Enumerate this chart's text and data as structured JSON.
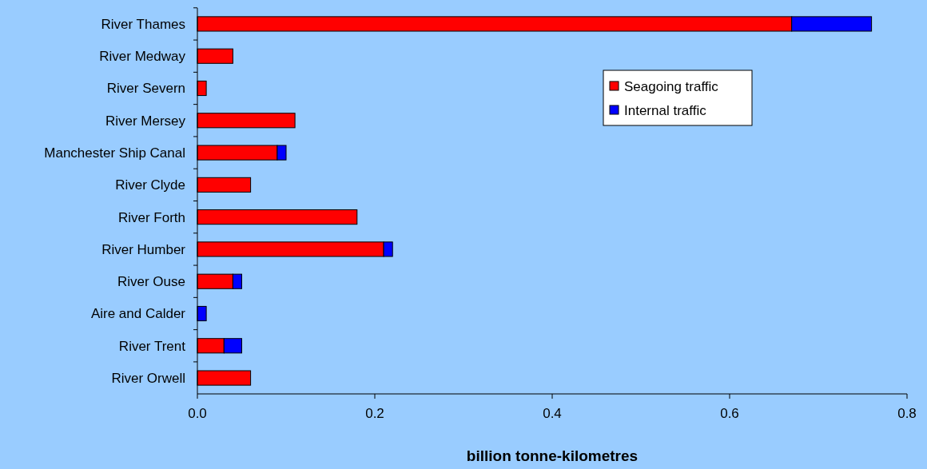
{
  "chart_data": {
    "type": "bar",
    "orientation": "horizontal",
    "stacked": true,
    "xlabel": "billion tonne-kilometres",
    "categories": [
      "River Thames",
      "River Medway",
      "River Severn",
      "River Mersey",
      "Manchester Ship Canal",
      "River Clyde",
      "River Forth",
      "River Humber",
      "River Ouse",
      "Aire and Calder",
      "River Trent",
      "River Orwell"
    ],
    "series": [
      {
        "name": "Seagoing traffic",
        "color": "#ff0000",
        "values": [
          0.67,
          0.04,
          0.01,
          0.11,
          0.09,
          0.06,
          0.18,
          0.21,
          0.04,
          0,
          0.03,
          0.06
        ]
      },
      {
        "name": "Internal traffic",
        "color": "#0000ff",
        "values": [
          0.09,
          0,
          0,
          0,
          0.01,
          0,
          0,
          0.01,
          0.01,
          0.01,
          0.02,
          0
        ]
      }
    ],
    "xlim": [
      0,
      0.8
    ],
    "xticks": [
      {
        "value": 0,
        "label": "0.0"
      },
      {
        "value": 0.2,
        "label": "0.2"
      },
      {
        "value": 0.4,
        "label": "0.4"
      },
      {
        "value": 0.6,
        "label": "0.6"
      },
      {
        "value": 0.8,
        "label": "0.8"
      }
    ],
    "grid": false,
    "legend": "top right"
  }
}
